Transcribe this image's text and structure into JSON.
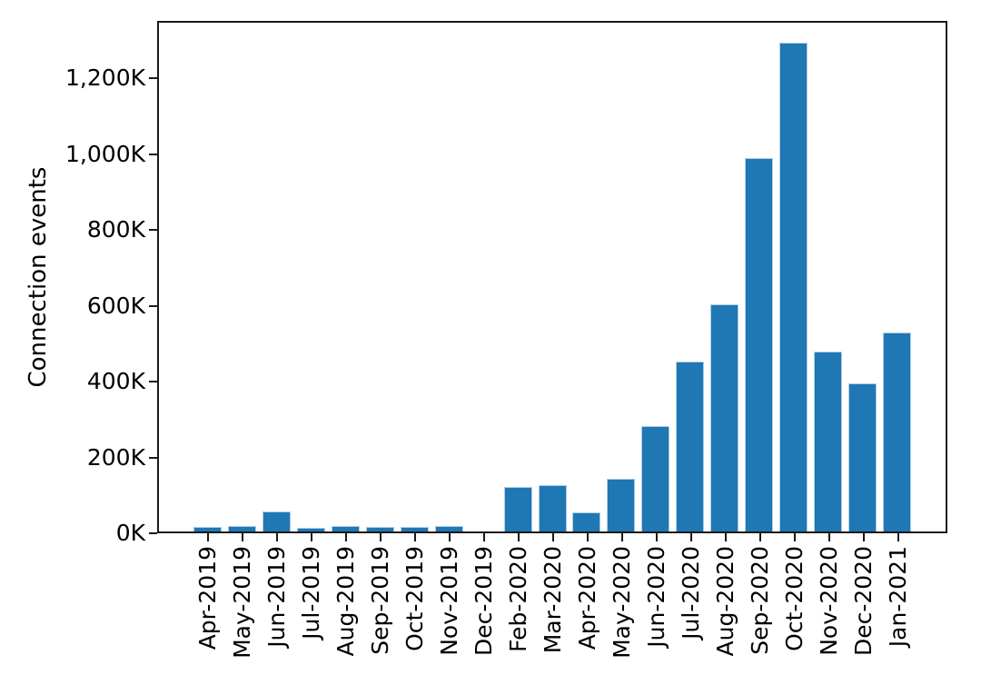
{
  "figure": {
    "background": "#ffffff"
  },
  "chart_data": {
    "type": "bar",
    "title": "",
    "xlabel": "",
    "ylabel": "Connection events",
    "categories": [
      "Apr-2019",
      "May-2019",
      "Jun-2019",
      "Jul-2019",
      "Aug-2019",
      "Sep-2019",
      "Oct-2019",
      "Nov-2019",
      "Dec-2019",
      "Feb-2020",
      "Mar-2020",
      "Apr-2020",
      "May-2020",
      "Jun-2020",
      "Jul-2020",
      "Aug-2020",
      "Sep-2020",
      "Oct-2020",
      "Nov-2020",
      "Dec-2020",
      "Jan-2021"
    ],
    "values": [
      12,
      14,
      52,
      10,
      15,
      12,
      12,
      14,
      0,
      117,
      122,
      50,
      140,
      278,
      449,
      598,
      985,
      1288,
      475,
      390,
      525
    ],
    "values_unit": "K (thousands of connection events)",
    "ytick_values": [
      0,
      200,
      400,
      600,
      800,
      1000,
      1200
    ],
    "ytick_labels": [
      "0K",
      "200K",
      "400K",
      "600K",
      "800K",
      "1,000K",
      "1,200K"
    ],
    "ylim": [
      0,
      1350
    ],
    "grid": false,
    "legend": null,
    "bar_color": "#1f77b4",
    "bar_edge_color": "#aecde5",
    "axis_color": "#1a1a1a",
    "text_color": "#000000"
  }
}
